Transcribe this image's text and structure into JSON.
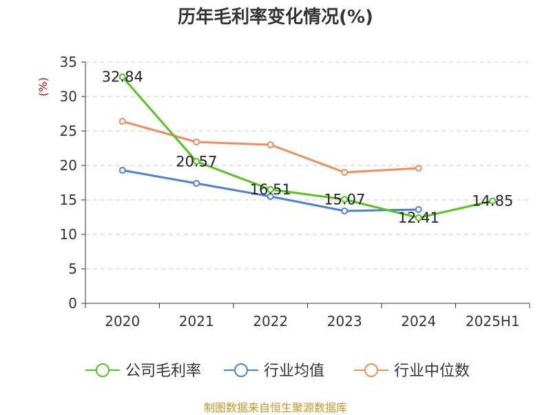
{
  "chart_data": {
    "type": "line",
    "title": "历年毛利率变化情况(%)",
    "ylabel": "(%)",
    "xlabel": "",
    "categories": [
      "2020",
      "2021",
      "2022",
      "2023",
      "2024",
      "2025H1"
    ],
    "ylim": [
      0,
      35
    ],
    "yticks": [
      0,
      5,
      10,
      15,
      20,
      25,
      30,
      35
    ],
    "grid": true,
    "legend_position": "bottom",
    "series": [
      {
        "name": "公司毛利率",
        "color": "#52c41a",
        "values": [
          32.84,
          20.57,
          16.51,
          15.07,
          12.41,
          14.85
        ],
        "labels": [
          "32.84",
          "20.57",
          "16.51",
          "15.07",
          "12.41",
          "14.85"
        ]
      },
      {
        "name": "行业均值",
        "color": "#4a7fdc",
        "values": [
          19.3,
          17.4,
          15.5,
          13.4,
          13.6,
          null
        ]
      },
      {
        "name": "行业中位数",
        "color": "#f08c5a",
        "values": [
          26.4,
          23.4,
          23.0,
          19.0,
          19.6,
          null
        ]
      }
    ]
  },
  "footer": {
    "source": "制图数据来自恒生聚源数据库"
  }
}
